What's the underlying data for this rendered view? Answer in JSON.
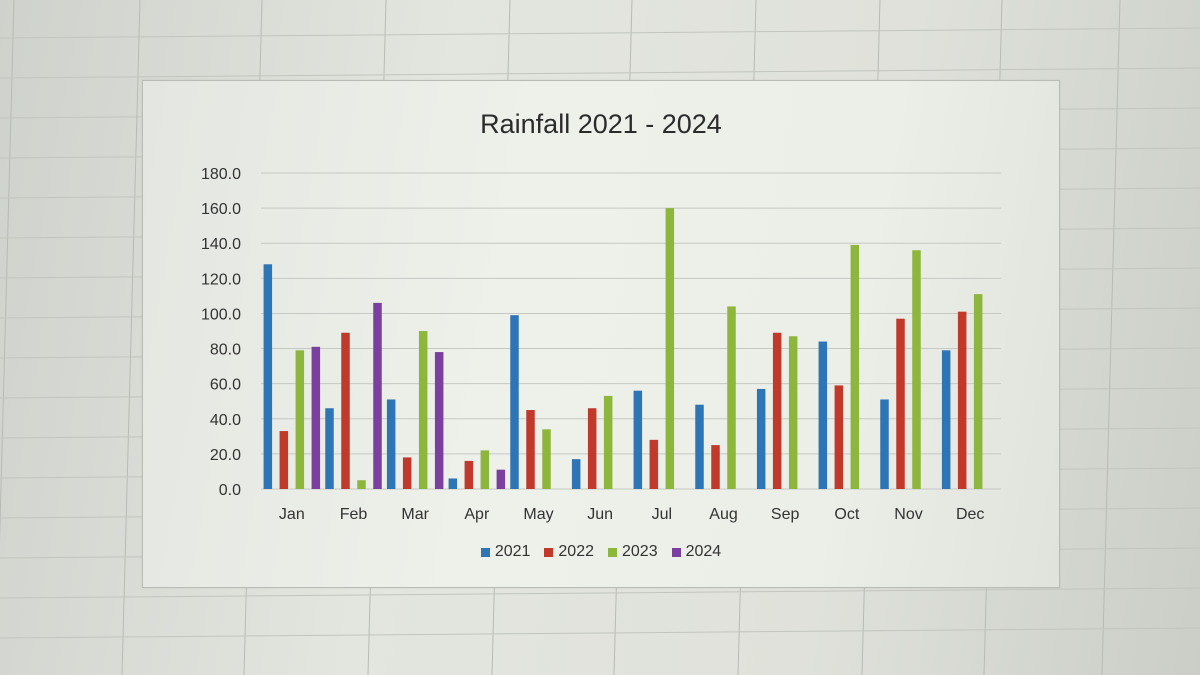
{
  "chart_data": {
    "type": "bar",
    "title": "Rainfall 2021 - 2024",
    "xlabel": "",
    "ylabel": "",
    "ylim": [
      0,
      180
    ],
    "yticks": [
      "0.0",
      "20.0",
      "40.0",
      "60.0",
      "80.0",
      "100.0",
      "120.0",
      "140.0",
      "160.0",
      "180.0"
    ],
    "categories": [
      "Jan",
      "Feb",
      "Mar",
      "Apr",
      "May",
      "Jun",
      "Jul",
      "Aug",
      "Sep",
      "Oct",
      "Nov",
      "Dec"
    ],
    "grid": true,
    "legend_position": "bottom",
    "series": [
      {
        "name": "2021",
        "color": "#2e75b6",
        "values": [
          128,
          46,
          51,
          6,
          99,
          17,
          56,
          48,
          57,
          84,
          51,
          79
        ]
      },
      {
        "name": "2022",
        "color": "#c0392b",
        "values": [
          33,
          89,
          18,
          16,
          45,
          46,
          28,
          25,
          89,
          59,
          97,
          101
        ]
      },
      {
        "name": "2023",
        "color": "#8db63c",
        "values": [
          79,
          5,
          90,
          22,
          34,
          53,
          160,
          104,
          87,
          139,
          136,
          111
        ]
      },
      {
        "name": "2024",
        "color": "#7b3fa0",
        "values": [
          81,
          106,
          78,
          11,
          null,
          null,
          null,
          null,
          null,
          null,
          null,
          null
        ]
      }
    ]
  }
}
